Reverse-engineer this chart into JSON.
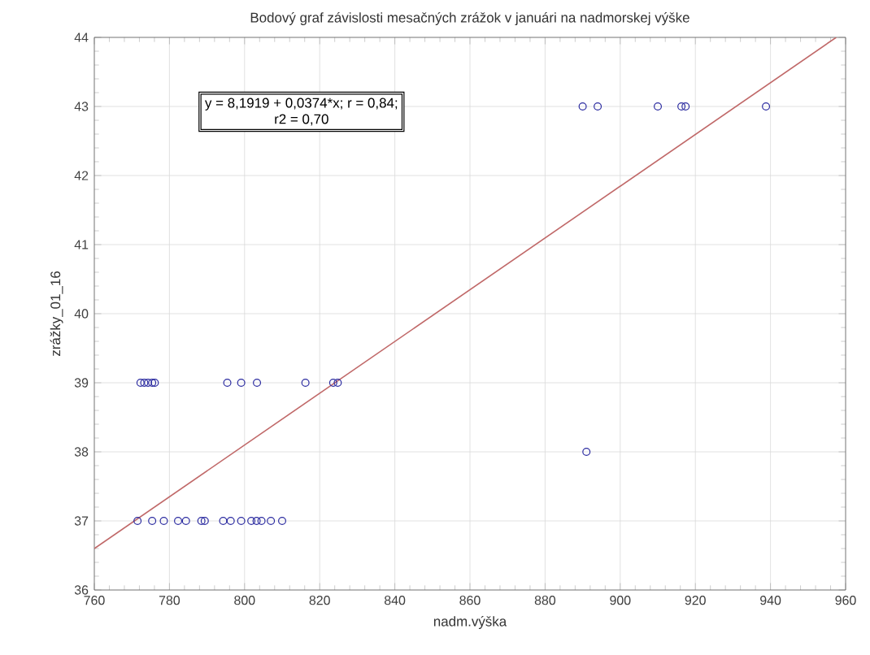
{
  "chart_data": {
    "type": "scatter",
    "title": "Bodový graf závislosti mesačných zrážok v januári na nadmorskej výške",
    "xlabel": "nadm.výška",
    "ylabel": "zrážky_01_16",
    "annotations": [
      "y = 8,1919 + 0,0374*x;  r = 0,84;",
      "r2 = 0,70"
    ],
    "xlim": [
      760,
      960
    ],
    "ylim": [
      36,
      44
    ],
    "xticks": [
      760,
      780,
      800,
      820,
      840,
      860,
      880,
      900,
      920,
      940,
      960
    ],
    "yticks": [
      36,
      37,
      38,
      39,
      40,
      41,
      42,
      43,
      44
    ],
    "grid": true,
    "marker": "circle",
    "series": [
      {
        "color": "#2b2ba0",
        "x": [
          771.5,
          775.4,
          778.5,
          782.3,
          784.4,
          788.5,
          789.4,
          794.3,
          796.3,
          799.1,
          801.8,
          803.2,
          804.5,
          807,
          810,
          772.3,
          773.3,
          774.3,
          775.4,
          776.1,
          795.4,
          799.1,
          803.3,
          816.2,
          823.6,
          824.8,
          891,
          890,
          894,
          910,
          916.3,
          917.4,
          938.8
        ],
        "values": [
          37,
          37,
          37,
          37,
          37,
          37,
          37,
          37,
          37,
          37,
          37,
          37,
          37,
          37,
          37,
          39,
          39,
          39,
          39,
          39,
          39,
          39,
          39,
          39,
          39,
          39,
          38,
          43,
          43,
          43,
          43,
          43,
          43
        ]
      },
      {
        "type": "line",
        "color": "#c06868",
        "marker": "none",
        "x": [
          760,
          957.5
        ],
        "values": [
          36.6,
          44.0
        ]
      }
    ]
  }
}
